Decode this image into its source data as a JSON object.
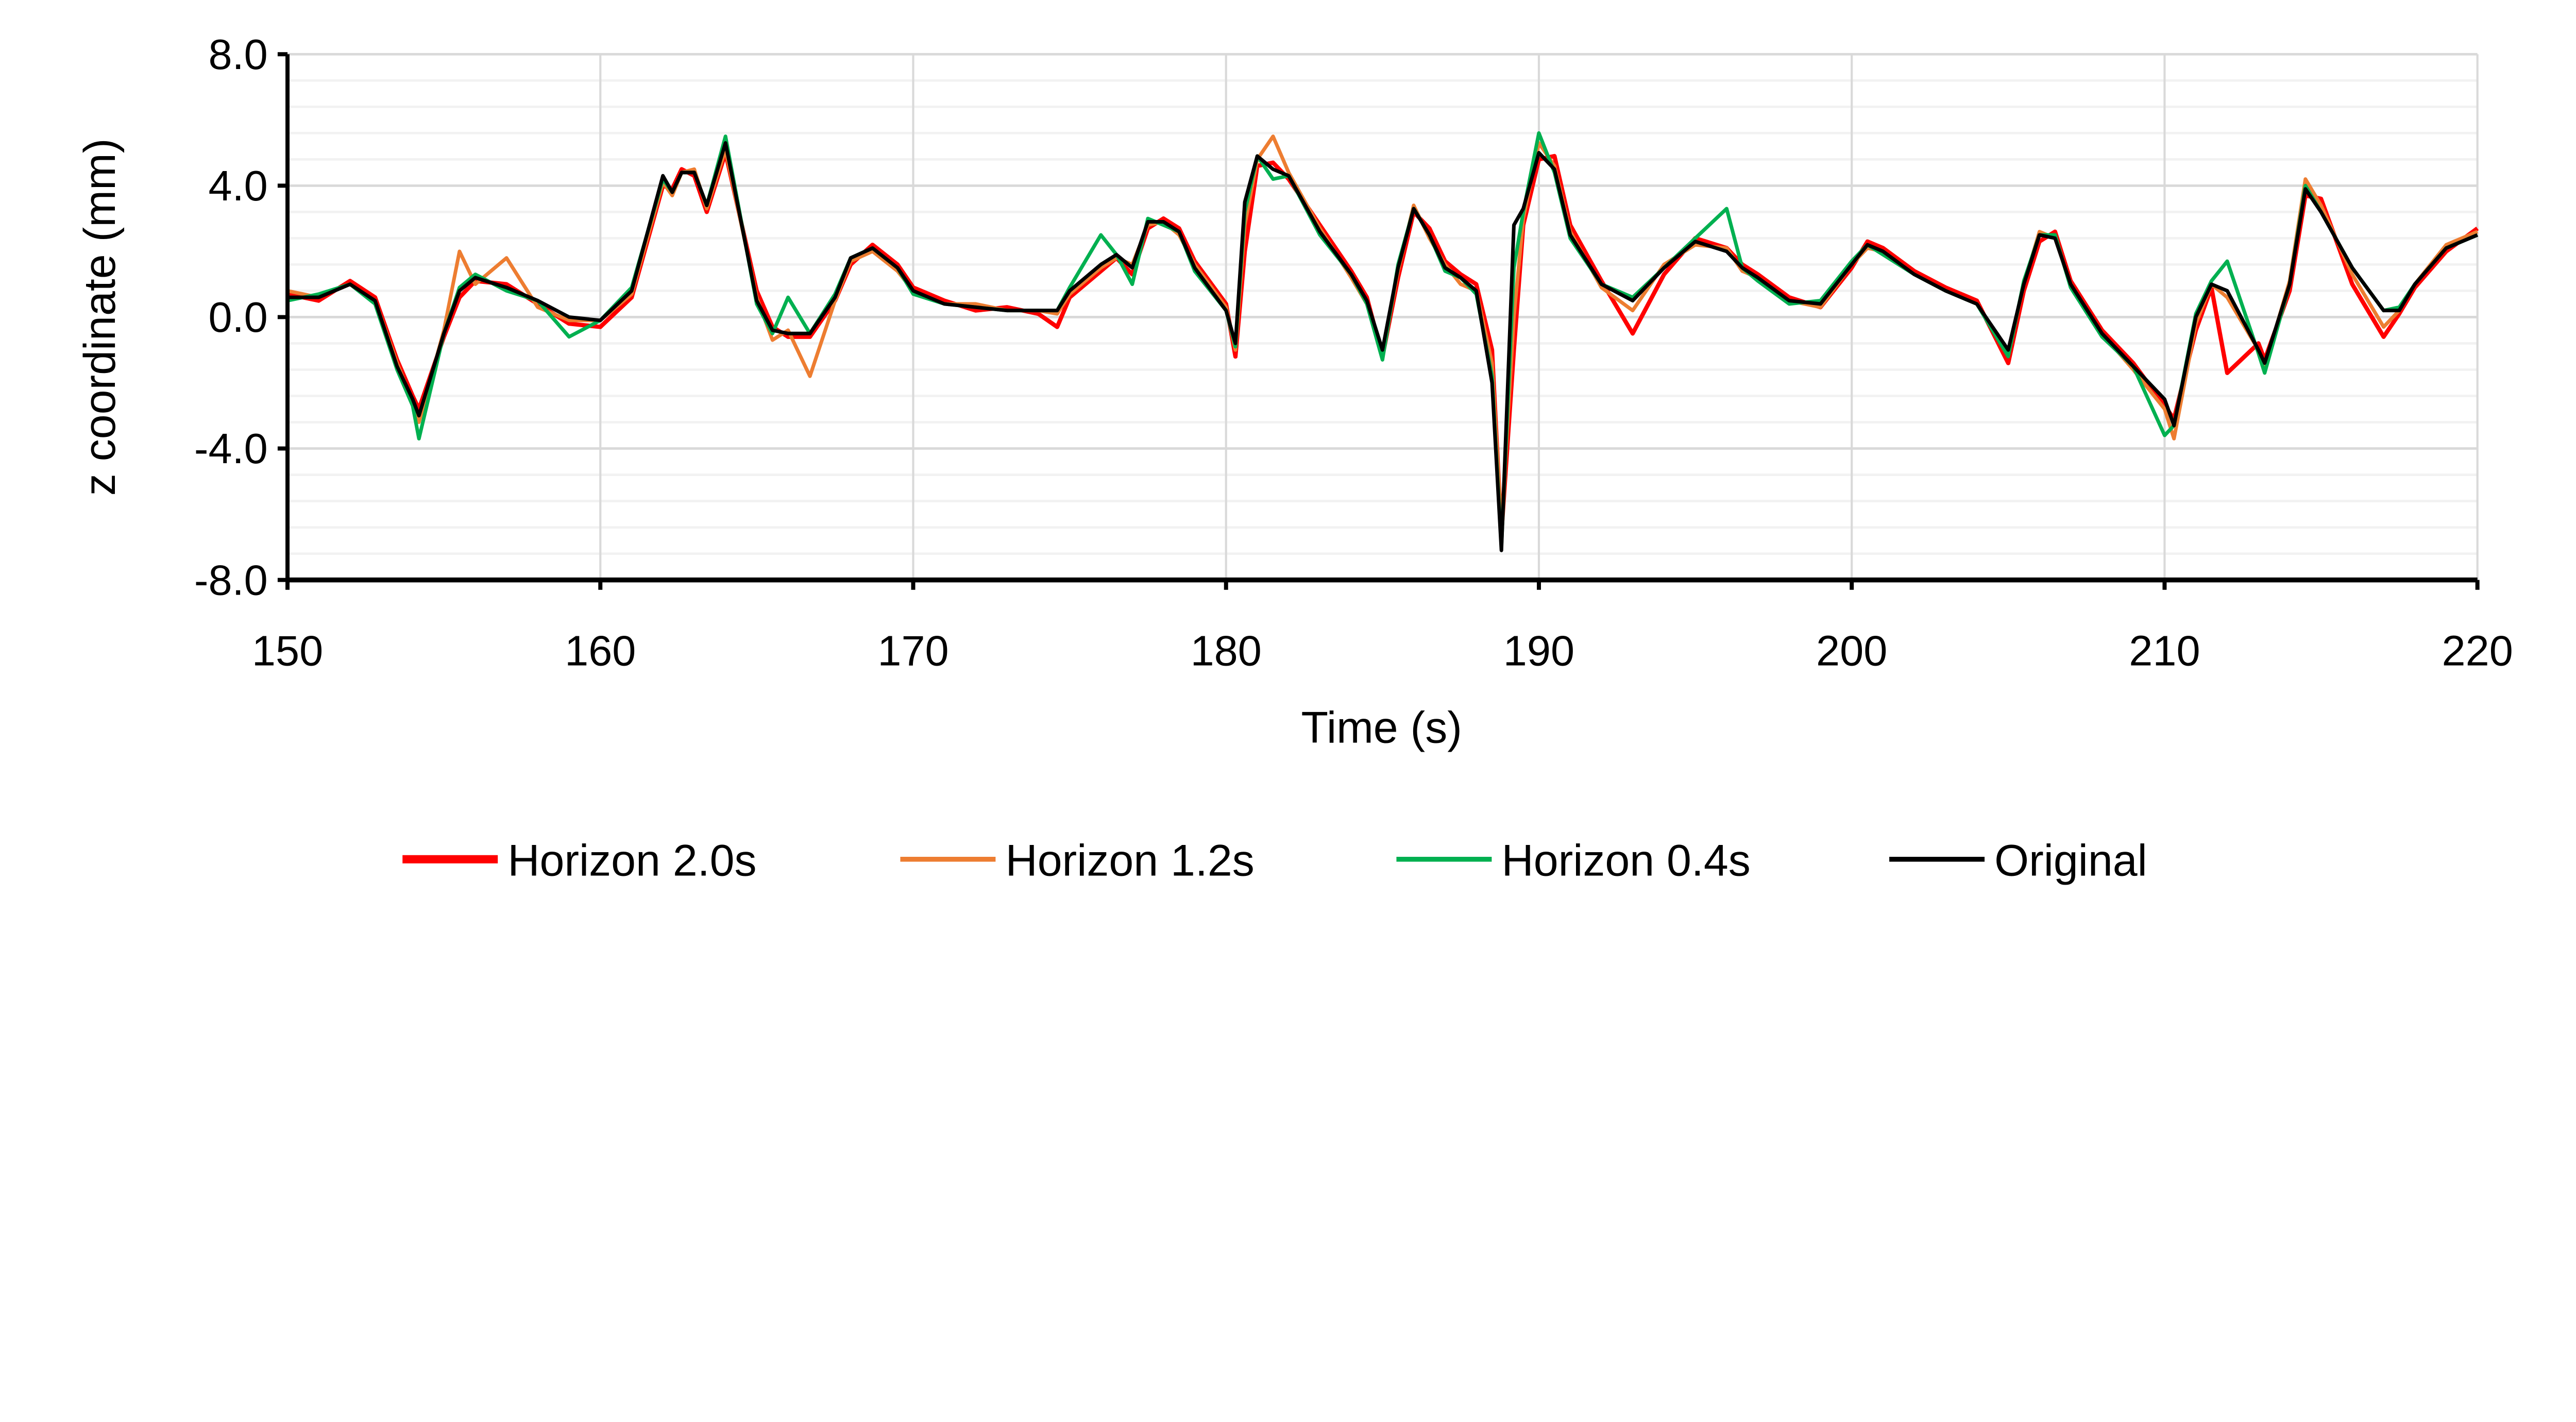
{
  "chart_data": {
    "type": "line",
    "title": "",
    "xlabel": "Time (s)",
    "ylabel": "z coordinate (mm)",
    "xlim": [
      150,
      220
    ],
    "ylim": [
      -8,
      8
    ],
    "x_ticks": [
      "150",
      "160",
      "170",
      "180",
      "190",
      "200",
      "210",
      "220"
    ],
    "y_ticks": [
      "8.0",
      "4.0",
      "0.0",
      "-4.0",
      "-8.0"
    ],
    "y_major_step": 4,
    "y_minor_step": 0.8,
    "grid": true,
    "legend_position": "bottom",
    "x": [
      150,
      151,
      152,
      152.8,
      153.5,
      154,
      154.2,
      155,
      155.5,
      156,
      157,
      158,
      159,
      160,
      161,
      162,
      162.3,
      162.6,
      163,
      163.4,
      164,
      165,
      165.5,
      166,
      166.7,
      167.5,
      168,
      168.7,
      169.5,
      170,
      171,
      172,
      173,
      174,
      174.6,
      175,
      176,
      176.5,
      177,
      177.5,
      178,
      178.5,
      179,
      180,
      180.3,
      180.6,
      181,
      181.5,
      182,
      183,
      184,
      184.5,
      185,
      185.5,
      186,
      186.5,
      187,
      187.5,
      188,
      188.5,
      188.8,
      189.2,
      189.5,
      190,
      190.5,
      191,
      192,
      193,
      194,
      195,
      196,
      196.5,
      197,
      198,
      199,
      200,
      200.5,
      201,
      202,
      203,
      204,
      205,
      205.5,
      206,
      206.5,
      207,
      208,
      209,
      210,
      210.3,
      211,
      211.5,
      212,
      213,
      213.2,
      214,
      214.5,
      215,
      216,
      217,
      217.5,
      218,
      219,
      220
    ],
    "series": [
      {
        "name": "Horizon 2.0s",
        "color": "#FF0000",
        "values": [
          0.7,
          0.5,
          1.1,
          0.6,
          -1.3,
          -2.4,
          -2.8,
          -0.6,
          0.6,
          1.1,
          1.0,
          0.4,
          -0.2,
          -0.3,
          0.6,
          4.0,
          3.9,
          4.5,
          4.3,
          3.2,
          5.0,
          0.8,
          -0.3,
          -0.6,
          -0.6,
          0.5,
          1.6,
          2.2,
          1.6,
          0.9,
          0.5,
          0.2,
          0.3,
          0.1,
          -0.3,
          0.6,
          1.4,
          1.8,
          1.3,
          2.7,
          3.0,
          2.7,
          1.7,
          0.4,
          -1.2,
          2.0,
          4.6,
          4.7,
          4.2,
          2.8,
          1.4,
          0.6,
          -1.2,
          1.2,
          3.2,
          2.7,
          1.7,
          1.3,
          1.0,
          -1.0,
          -6.6,
          -1.0,
          2.8,
          4.8,
          4.9,
          2.8,
          1.1,
          -0.5,
          1.3,
          2.4,
          2.1,
          1.6,
          1.3,
          0.6,
          0.3,
          1.5,
          2.3,
          2.1,
          1.4,
          0.9,
          0.5,
          -1.4,
          0.8,
          2.3,
          2.6,
          1.1,
          -0.4,
          -1.4,
          -2.7,
          -3.1,
          -0.4,
          0.9,
          -1.7,
          -0.8,
          -1.3,
          0.8,
          3.7,
          3.6,
          1.0,
          -0.6,
          0.1,
          0.9,
          2.0,
          2.7
        ]
      },
      {
        "name": "Horizon 1.2s",
        "color": "#ED7D31",
        "values": [
          0.8,
          0.6,
          1.0,
          0.5,
          -1.4,
          -2.6,
          -3.2,
          -0.4,
          2.0,
          1.0,
          1.8,
          0.3,
          -0.1,
          -0.1,
          0.7,
          4.1,
          3.7,
          4.4,
          4.5,
          3.3,
          5.1,
          0.6,
          -0.7,
          -0.4,
          -1.8,
          0.5,
          1.7,
          2.0,
          1.4,
          0.8,
          0.4,
          0.4,
          0.2,
          0.2,
          0.1,
          0.7,
          1.5,
          1.8,
          1.6,
          2.8,
          2.9,
          2.5,
          1.6,
          0.3,
          -1.0,
          2.8,
          4.8,
          5.5,
          4.4,
          2.7,
          1.2,
          0.4,
          -1.1,
          1.4,
          3.4,
          2.4,
          1.6,
          1.0,
          0.8,
          -1.4,
          -6.4,
          0.0,
          3.0,
          5.3,
          4.6,
          2.6,
          0.9,
          0.2,
          1.6,
          2.2,
          2.1,
          1.4,
          1.2,
          0.5,
          0.3,
          1.6,
          2.1,
          2.0,
          1.3,
          0.8,
          0.4,
          -1.1,
          1.0,
          2.6,
          2.4,
          1.0,
          -0.5,
          -1.6,
          -2.8,
          -3.7,
          -0.2,
          1.0,
          0.6,
          -1.0,
          -1.5,
          1.1,
          4.2,
          3.4,
          1.3,
          -0.3,
          0.2,
          1.0,
          2.2,
          2.6
        ]
      },
      {
        "name": "Horizon 0.4s",
        "color": "#00B050",
        "values": [
          0.5,
          0.7,
          1.0,
          0.4,
          -1.6,
          -2.7,
          -3.7,
          -0.5,
          0.9,
          1.3,
          0.8,
          0.5,
          -0.6,
          -0.1,
          0.9,
          4.2,
          3.8,
          4.4,
          4.4,
          3.4,
          5.5,
          0.4,
          -0.5,
          0.6,
          -0.5,
          0.7,
          1.8,
          2.1,
          1.5,
          0.7,
          0.4,
          0.3,
          0.2,
          0.2,
          0.2,
          0.9,
          2.5,
          1.9,
          1.0,
          3.0,
          2.8,
          2.6,
          1.4,
          0.2,
          -0.9,
          3.2,
          4.9,
          4.2,
          4.3,
          2.5,
          1.3,
          0.4,
          -1.3,
          1.6,
          3.3,
          2.5,
          1.4,
          1.2,
          0.7,
          -1.8,
          -7.0,
          1.5,
          3.2,
          5.6,
          4.4,
          2.4,
          1.0,
          0.6,
          1.5,
          2.4,
          3.3,
          1.5,
          1.1,
          0.4,
          0.5,
          1.7,
          2.2,
          1.9,
          1.3,
          0.8,
          0.4,
          -1.2,
          1.1,
          2.5,
          2.5,
          0.9,
          -0.6,
          -1.5,
          -3.6,
          -3.3,
          0.1,
          1.1,
          1.7,
          -1.1,
          -1.7,
          1.0,
          4.0,
          3.2,
          1.5,
          0.2,
          0.3,
          1.0,
          2.1,
          2.5
        ]
      },
      {
        "name": "Original",
        "color": "#000000",
        "values": [
          0.6,
          0.6,
          1.0,
          0.5,
          -1.5,
          -2.5,
          -3.0,
          -0.5,
          0.8,
          1.2,
          0.9,
          0.5,
          0.0,
          -0.1,
          0.8,
          4.3,
          3.8,
          4.4,
          4.4,
          3.4,
          5.3,
          0.5,
          -0.4,
          -0.5,
          -0.5,
          0.6,
          1.8,
          2.1,
          1.5,
          0.8,
          0.4,
          0.3,
          0.2,
          0.2,
          0.2,
          0.8,
          1.6,
          1.9,
          1.5,
          2.9,
          2.9,
          2.6,
          1.5,
          0.2,
          -0.8,
          3.5,
          4.9,
          4.5,
          4.3,
          2.6,
          1.3,
          0.5,
          -1.0,
          1.5,
          3.3,
          2.5,
          1.5,
          1.2,
          0.8,
          -2.0,
          -7.1,
          2.8,
          3.3,
          5.0,
          4.5,
          2.5,
          1.0,
          0.5,
          1.5,
          2.3,
          2.0,
          1.5,
          1.2,
          0.5,
          0.4,
          1.6,
          2.2,
          2.0,
          1.3,
          0.8,
          0.4,
          -1.0,
          1.0,
          2.5,
          2.4,
          1.0,
          -0.5,
          -1.5,
          -2.5,
          -3.3,
          0.0,
          1.0,
          0.8,
          -1.0,
          -1.4,
          1.0,
          3.9,
          3.2,
          1.5,
          0.2,
          0.2,
          1.0,
          2.1,
          2.5
        ]
      }
    ]
  },
  "colors": {
    "major_grid": "#D9D9D9",
    "minor_grid": "#F2F2F2",
    "axis": "#000000"
  }
}
